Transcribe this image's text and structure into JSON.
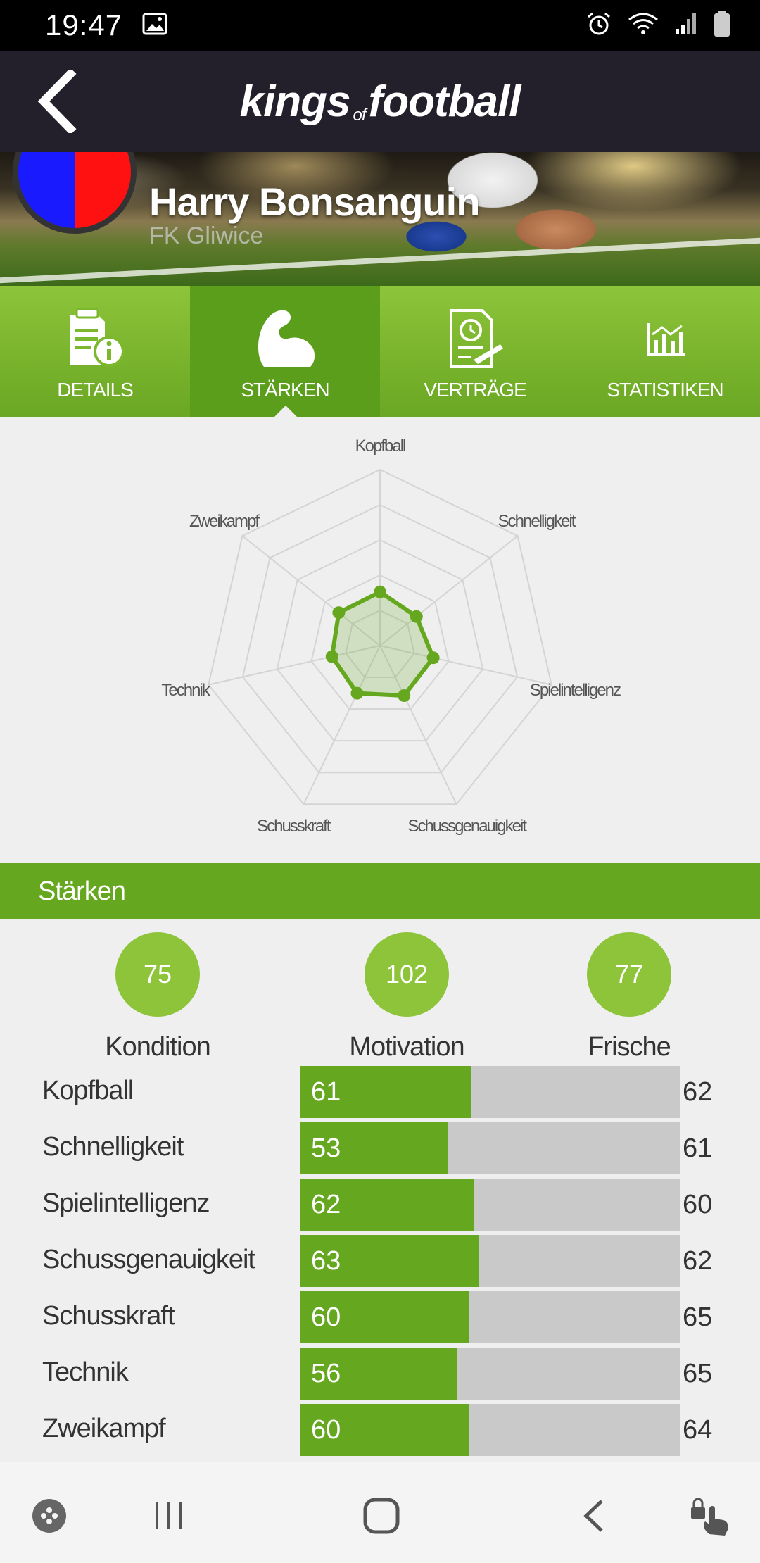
{
  "status": {
    "time": "19:47"
  },
  "header": {
    "brand_main": "kings",
    "brand_of": "of",
    "brand_tail": "football"
  },
  "player": {
    "name": "Harry Bonsanguin",
    "club": "FK Gliwice"
  },
  "tabs": [
    {
      "label": "DETAILS",
      "icon": "document-info-icon",
      "active": false
    },
    {
      "label": "STÄRKEN",
      "icon": "muscle-icon",
      "active": true
    },
    {
      "label": "VERTRÄGE",
      "icon": "contract-icon",
      "active": false
    },
    {
      "label": "STATISTIKEN",
      "icon": "bar-chart-icon",
      "active": false
    }
  ],
  "radar": {
    "labels": [
      "Kopfball",
      "Schnelligkeit",
      "Spielintelligenz",
      "Schussgenauigkeit",
      "Schusskraft",
      "Technik",
      "Zweikampf"
    ]
  },
  "section": {
    "title": "Stärken"
  },
  "metrics": [
    {
      "value": "75",
      "label": "Kondition"
    },
    {
      "value": "102",
      "label": "Motivation"
    },
    {
      "value": "77",
      "label": "Frische"
    }
  ],
  "skills": [
    {
      "label": "Kopfball",
      "value": "61",
      "right": "62",
      "fill": 0.45
    },
    {
      "label": "Schnelligkeit",
      "value": "53",
      "right": "61",
      "fill": 0.39
    },
    {
      "label": "Spielintelligenz",
      "value": "62",
      "right": "60",
      "fill": 0.46
    },
    {
      "label": "Schussgenauigkeit",
      "value": "63",
      "right": "62",
      "fill": 0.47
    },
    {
      "label": "Schusskraft",
      "value": "60",
      "right": "65",
      "fill": 0.445
    },
    {
      "label": "Technik",
      "value": "56",
      "right": "65",
      "fill": 0.415
    },
    {
      "label": "Zweikampf",
      "value": "60",
      "right": "64",
      "fill": 0.445
    }
  ],
  "colors": {
    "accent": "#65a820",
    "header": "#23202c"
  }
}
